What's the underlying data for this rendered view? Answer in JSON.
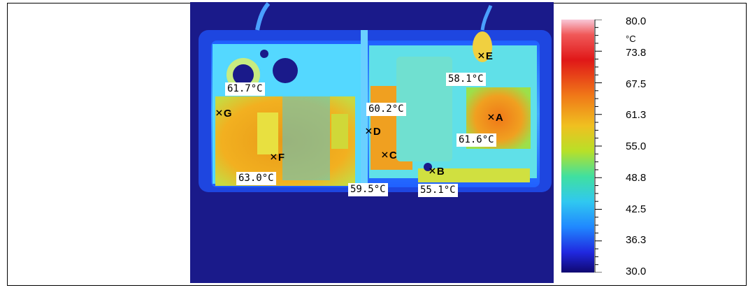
{
  "markers": [
    {
      "letter": "A",
      "temp": "61.6°C"
    },
    {
      "letter": "B",
      "temp": "55.1°C"
    },
    {
      "letter": "C",
      "temp": "59.5°C"
    },
    {
      "letter": "D",
      "temp": "60.2°C"
    },
    {
      "letter": "E",
      "temp": "58.1°C"
    },
    {
      "letter": "F",
      "temp": "63.0°C"
    },
    {
      "letter": "G",
      "temp": "61.7°C"
    }
  ],
  "scale": {
    "unit": "°C",
    "labels": [
      "80.0",
      "73.8",
      "67.5",
      "61.3",
      "55.0",
      "48.8",
      "42.5",
      "36.3",
      "30.0"
    ]
  },
  "colors": {
    "background": "#1a1a8a",
    "enclosure": "#2a6fff",
    "hot": "#f0a020"
  }
}
